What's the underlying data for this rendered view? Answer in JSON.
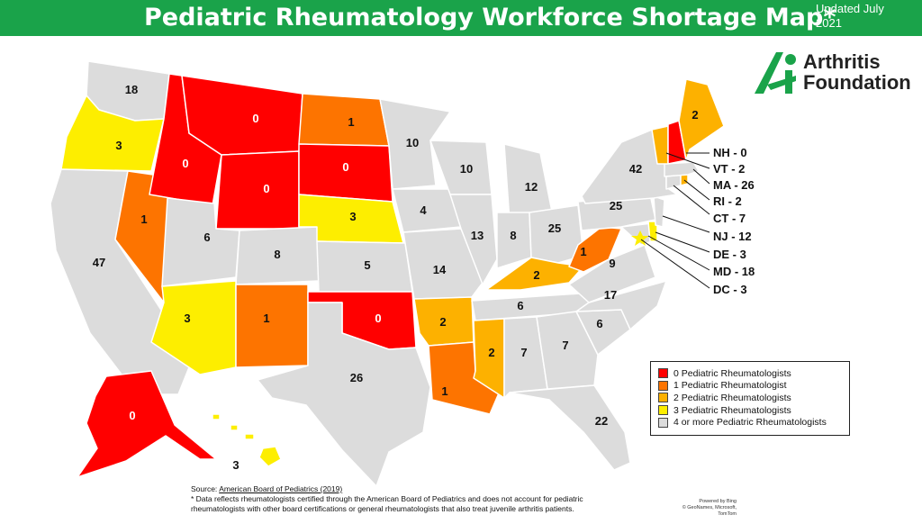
{
  "header": {
    "title": "Pediatric Rheumatology Workforce Shortage Map*",
    "updated_line1": "Updated July",
    "updated_line2": "2021"
  },
  "logo": {
    "line1": "Arthritis",
    "line2": "Foundation",
    "brand_color": "#1aa34a"
  },
  "colors": {
    "zero": "#ff0000",
    "one": "#fd7400",
    "two": "#fdb100",
    "three": "#fdee00",
    "four_plus": "#dcdcdc",
    "banner": "#1aa34a"
  },
  "states": {
    "WA": "18",
    "OR": "3",
    "CA": "47",
    "NV": "1",
    "ID": "0",
    "MT": "0",
    "WY": "0",
    "UT": "6",
    "CO": "8",
    "AZ": "3",
    "NM": "1",
    "ND": "1",
    "SD": "0",
    "NE": "3",
    "KS": "5",
    "OK": "0",
    "TX": "26",
    "MN": "10",
    "IA": "4",
    "MO": "14",
    "AR": "2",
    "LA": "1",
    "WI": "10",
    "IL": "13",
    "MI": "12",
    "IN": "8",
    "OH": "25",
    "KY": "2",
    "TN": "6",
    "MS": "2",
    "AL": "7",
    "GA": "7",
    "FL": "22",
    "SC": "6",
    "NC": "17",
    "VA": "9",
    "WV": "1",
    "PA": "25",
    "NY": "42",
    "ME": "2",
    "AK": "0",
    "HI": "3"
  },
  "callouts": [
    {
      "state": "NH",
      "text": "NH - 0"
    },
    {
      "state": "VT",
      "text": "VT - 2"
    },
    {
      "state": "MA",
      "text": "MA - 26"
    },
    {
      "state": "RI",
      "text": "RI - 2"
    },
    {
      "state": "CT",
      "text": "CT - 7"
    },
    {
      "state": "NJ",
      "text": "NJ - 12"
    },
    {
      "state": "DE",
      "text": "DE - 3"
    },
    {
      "state": "MD",
      "text": "MD - 18"
    },
    {
      "state": "DC",
      "text": "DC - 3"
    }
  ],
  "legend": [
    {
      "label": "0 Pediatric Rheumatologists",
      "color": "#ff0000"
    },
    {
      "label": "1 Pediatric Rheumatologist",
      "color": "#fd7400"
    },
    {
      "label": "2 Pediatric Rheumatologists",
      "color": "#fdb100"
    },
    {
      "label": "3 Pediatric Rheumatologists",
      "color": "#fdee00"
    },
    {
      "label": "4 or more Pediatric Rheumatologists",
      "color": "#dcdcdc"
    }
  ],
  "footer": {
    "source_prefix": "Source: ",
    "source_link": "American Board of Pediatrics (2019)",
    "note": "* Data reflects rheumatologists certified through the American Board of Pediatrics and does not account for pediatric rheumatologists with other board certifications or general rheumatologists that also treat juvenile arthritis patients.",
    "powered_by": "Powered by Bing",
    "attribution": "© GeoNames, Microsoft, TomTom"
  }
}
